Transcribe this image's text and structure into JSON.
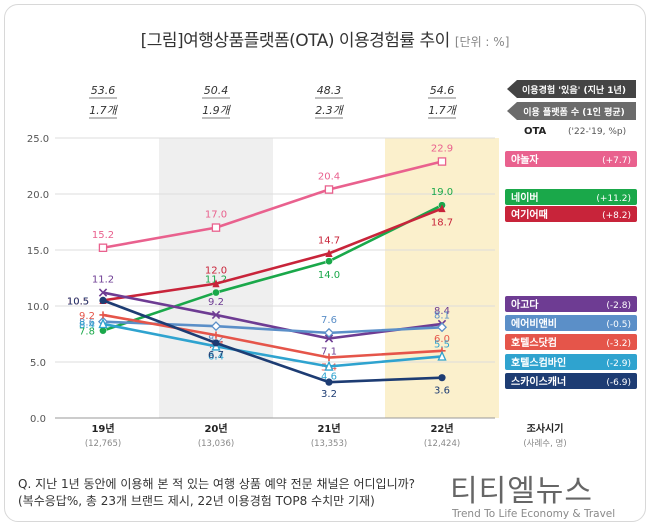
{
  "title": "[그림]여행상품플랫폼(OTA) 이용경험률 추이",
  "unit": "[단위 : %]",
  "legend_top": [
    {
      "label": "이용경험 '있음' (지난 1년)",
      "color": "#444444"
    },
    {
      "label": "이용 플랫폼 수 (1인 평균)",
      "color": "#6b6b6b"
    }
  ],
  "ota_header": {
    "label": "OTA",
    "sub": "('22-'19, %p)"
  },
  "survey_label": "조사시기",
  "survey_sub": "(사례수, 명)",
  "footnote": [
    "Q. 지난 1년 동안에 이용해 본 적 있는 여행 상품 예약 전문 채널은 어디입니까?",
    "(복수응답%, 총 23개 브랜드 제시, 22년 이용경험 TOP8 수치만 기재)"
  ],
  "brand": "티티엘뉴스",
  "brand_sub": "Trend To Life Economy & Travel",
  "chart_data": {
    "type": "line",
    "categories": [
      "19년",
      "20년",
      "21년",
      "22년"
    ],
    "samples": [
      "(12,765)",
      "(13,036)",
      "(13,353)",
      "(12,424)"
    ],
    "experience": [
      "53.6",
      "50.4",
      "48.3",
      "54.6"
    ],
    "platforms": [
      "1.7개",
      "1.9개",
      "2.3개",
      "1.7개"
    ],
    "ylim": [
      0,
      25
    ],
    "yticks": [
      "0.0",
      "5.0",
      "10.0",
      "15.0",
      "20.0",
      "25.0"
    ],
    "shaded_columns": [
      "20년",
      "22년"
    ],
    "series": [
      {
        "name": "야놀자",
        "change": "(+7.7)",
        "color": "#e9618e",
        "marker": "square",
        "values": [
          15.2,
          17.0,
          20.4,
          22.9
        ],
        "labels": [
          "15.2",
          "17.0",
          "20.4",
          "22.9"
        ]
      },
      {
        "name": "네이버",
        "change": "(+11.2)",
        "color": "#1aa84a",
        "marker": "circle",
        "values": [
          7.8,
          11.2,
          14.0,
          19.0
        ],
        "labels": [
          "7.8",
          "11.2",
          "14.0",
          "19.0"
        ]
      },
      {
        "name": "여기어때",
        "change": "(+8.2)",
        "color": "#c8243a",
        "marker": "triangle",
        "values": [
          10.5,
          12.0,
          14.7,
          18.7
        ],
        "labels": [
          "10.5",
          "12.0",
          "14.7",
          "18.7"
        ]
      },
      {
        "name": "아고다",
        "change": "(-2.8)",
        "color": "#6e3c93",
        "marker": "x",
        "values": [
          11.2,
          9.2,
          7.1,
          8.4
        ],
        "labels": [
          "11.2",
          "9.2",
          "7.1",
          "8.4"
        ]
      },
      {
        "name": "에어비앤비",
        "change": "(-0.5)",
        "color": "#5b8fc8",
        "marker": "diamond",
        "values": [
          8.6,
          8.2,
          7.6,
          8.1
        ],
        "labels": [
          "8.6",
          "8.2",
          "7.6",
          "8.1"
        ]
      },
      {
        "name": "호텔스닷컴",
        "change": "(-3.2)",
        "color": "#e5554a",
        "marker": "plus",
        "values": [
          9.2,
          7.4,
          5.4,
          6.0
        ],
        "labels": [
          "9.2",
          "7.4",
          "5.4",
          "6.0"
        ]
      },
      {
        "name": "호텔스컴바인",
        "change": "(-2.9)",
        "color": "#2fa3cf",
        "marker": "triangle-open",
        "values": [
          8.4,
          6.4,
          4.6,
          5.5
        ],
        "labels": [
          "8.4",
          "6.4",
          "4.6",
          "5.5"
        ]
      },
      {
        "name": "스카이스캐너",
        "change": "(-6.9)",
        "color": "#1d3c73",
        "marker": "dot",
        "values": [
          10.5,
          6.7,
          3.2,
          3.6
        ],
        "labels": [
          "10.5",
          "6.7",
          "3.2",
          "3.6"
        ]
      }
    ]
  }
}
